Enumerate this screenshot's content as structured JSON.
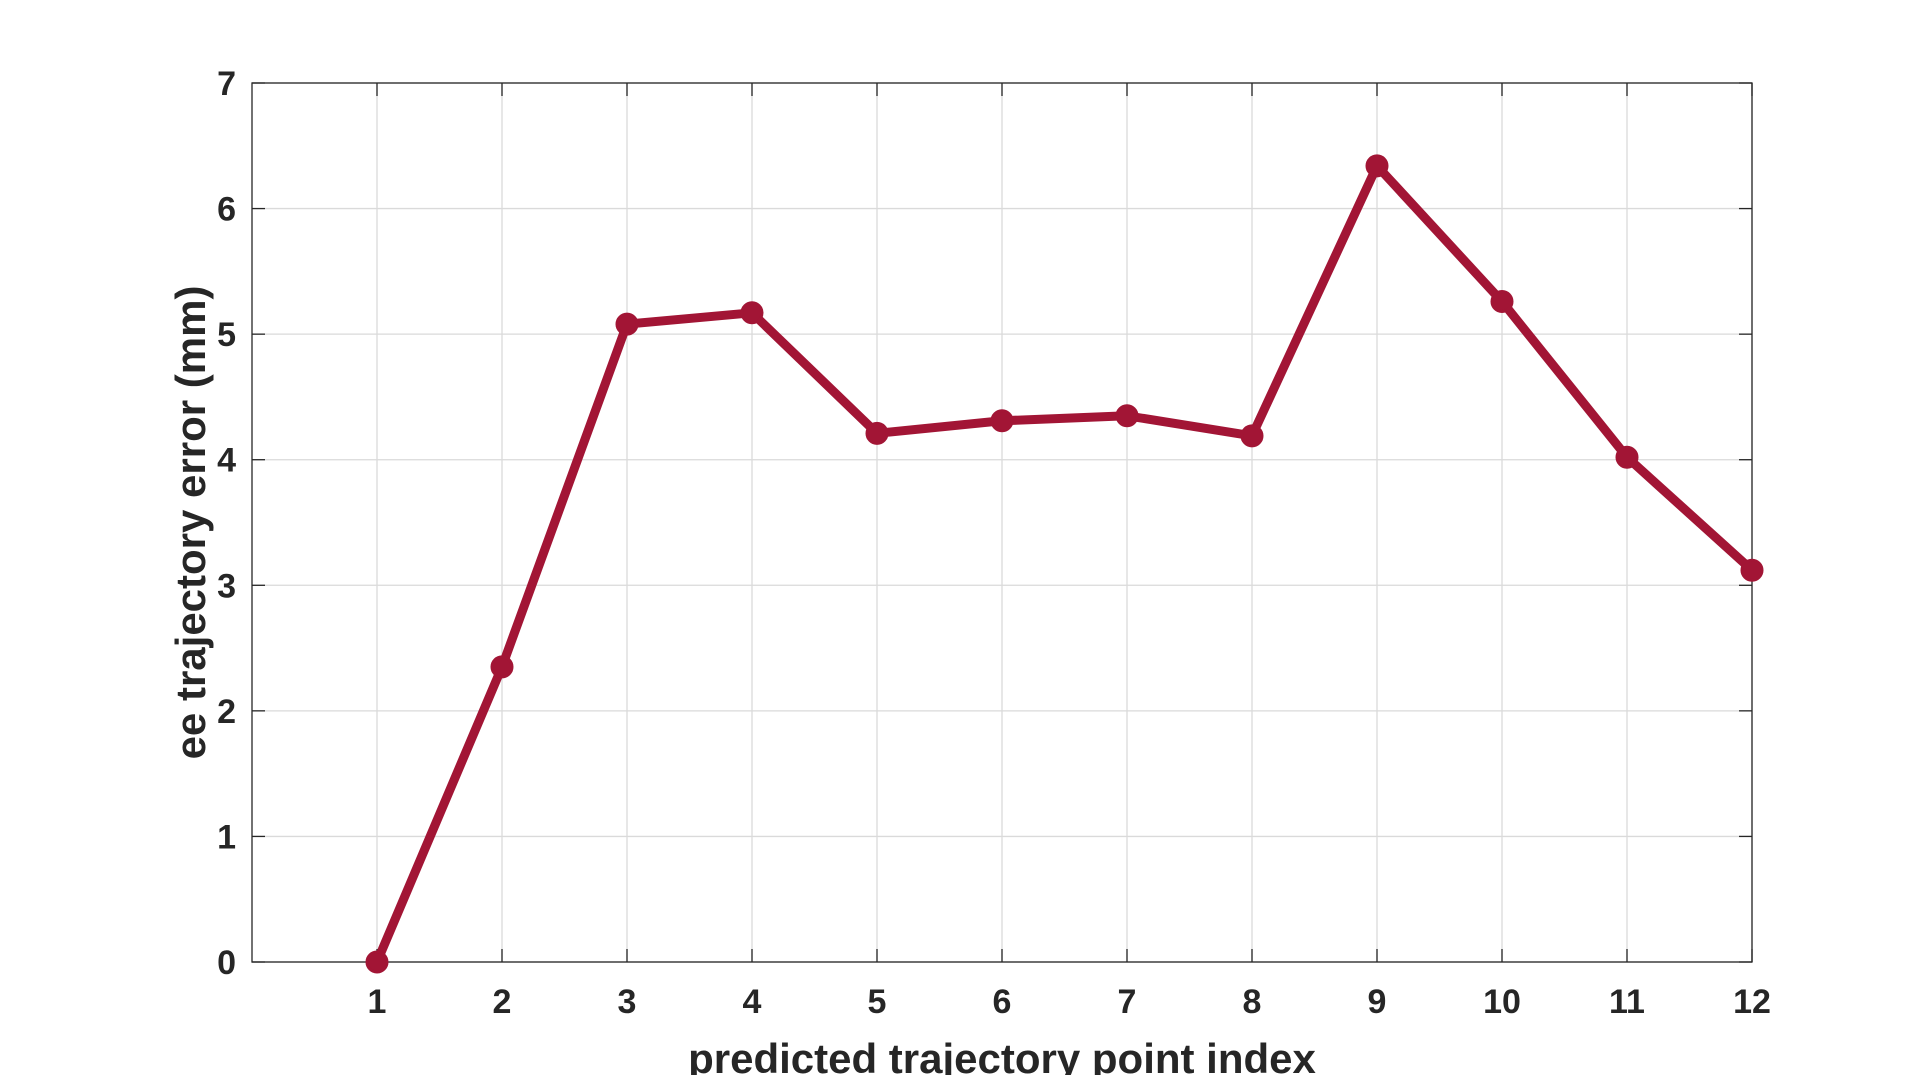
{
  "chart_data": {
    "type": "line",
    "xlabel": "predicted trajectory point index",
    "ylabel": "ee trajectory error (mm)",
    "x": [
      1,
      2,
      3,
      4,
      5,
      6,
      7,
      8,
      9,
      10,
      11,
      12
    ],
    "xticks": [
      "1",
      "2",
      "3",
      "4",
      "5",
      "6",
      "7",
      "8",
      "9",
      "10",
      "11",
      "12"
    ],
    "xlim": [
      0,
      12
    ],
    "ylim": [
      0,
      7
    ],
    "yticks": [
      "0",
      "1",
      "2",
      "3",
      "4",
      "5",
      "6",
      "7"
    ],
    "grid": true,
    "series": [
      {
        "values": [
          0.0,
          2.35,
          5.08,
          5.17,
          4.21,
          4.31,
          4.35,
          4.19,
          6.34,
          5.26,
          4.02,
          3.12
        ],
        "color": "#a21535"
      }
    ]
  }
}
